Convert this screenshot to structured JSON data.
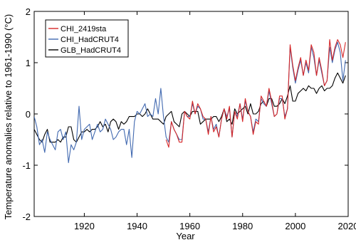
{
  "chart_data": {
    "type": "line",
    "xlabel": "Year",
    "ylabel": "Temperature anomalies relative to 1961-1990 (°C)",
    "xlim": [
      1901,
      2020
    ],
    "ylim": [
      -2,
      2
    ],
    "x_ticks": [
      1920,
      1940,
      1960,
      1980,
      2000,
      2020
    ],
    "x_tick_labels": [
      "1920",
      "1940",
      "1960",
      "1980",
      "2000",
      "2020"
    ],
    "y_ticks": [
      -2,
      -1,
      0,
      1,
      2
    ],
    "y_tick_labels": [
      "-2",
      "-1",
      "0",
      "1",
      "2"
    ],
    "grid": false,
    "legend_position": "top-left",
    "series": [
      {
        "name": "CHI_2419sta",
        "color": "#d62728",
        "x": [
          1951,
          1952,
          1953,
          1954,
          1955,
          1956,
          1957,
          1958,
          1959,
          1960,
          1961,
          1962,
          1963,
          1964,
          1965,
          1966,
          1967,
          1968,
          1969,
          1970,
          1971,
          1972,
          1973,
          1974,
          1975,
          1976,
          1977,
          1978,
          1979,
          1980,
          1981,
          1982,
          1983,
          1984,
          1985,
          1986,
          1987,
          1988,
          1989,
          1990,
          1991,
          1992,
          1993,
          1994,
          1995,
          1996,
          1997,
          1998,
          1999,
          2000,
          2001,
          2002,
          2003,
          2004,
          2005,
          2006,
          2007,
          2008,
          2009,
          2010,
          2011,
          2012,
          2013,
          2014,
          2015,
          2016,
          2017,
          2018,
          2019
        ],
        "values": [
          -0.5,
          -0.65,
          -0.15,
          -0.3,
          -0.4,
          -0.55,
          -0.55,
          0.05,
          -0.05,
          -0.1,
          0.25,
          0.0,
          0.2,
          0.1,
          -0.05,
          -0.1,
          -0.4,
          -0.05,
          -0.35,
          -0.25,
          -0.45,
          -0.1,
          0.1,
          -0.1,
          0.15,
          -0.45,
          0.05,
          -0.1,
          0.2,
          -0.15,
          0.3,
          0.05,
          -0.05,
          -0.4,
          -0.15,
          -0.2,
          0.35,
          0.25,
          0.15,
          0.5,
          0.25,
          -0.05,
          0.0,
          0.35,
          0.35,
          -0.1,
          0.1,
          1.35,
          0.95,
          0.65,
          0.9,
          1.1,
          0.75,
          1.05,
          0.85,
          1.35,
          1.2,
          0.75,
          1.1,
          0.85,
          0.55,
          0.65,
          1.45,
          1.05,
          1.3,
          1.45,
          1.35,
          1.1,
          1.4
        ]
      },
      {
        "name": "CHI_HadCRUT4",
        "color": "#4169b0",
        "x": [
          1901,
          1902,
          1903,
          1904,
          1905,
          1906,
          1907,
          1908,
          1909,
          1910,
          1911,
          1912,
          1913,
          1914,
          1915,
          1916,
          1917,
          1918,
          1919,
          1920,
          1921,
          1922,
          1923,
          1924,
          1925,
          1926,
          1927,
          1928,
          1929,
          1930,
          1931,
          1932,
          1933,
          1934,
          1935,
          1936,
          1937,
          1938,
          1939,
          1940,
          1941,
          1942,
          1943,
          1944,
          1945,
          1946,
          1947,
          1948,
          1949,
          1950,
          1951,
          1952,
          1953,
          1954,
          1955,
          1956,
          1957,
          1958,
          1959,
          1960,
          1961,
          1962,
          1963,
          1964,
          1965,
          1966,
          1967,
          1968,
          1969,
          1970,
          1971,
          1972,
          1973,
          1974,
          1975,
          1976,
          1977,
          1978,
          1979,
          1980,
          1981,
          1982,
          1983,
          1984,
          1985,
          1986,
          1987,
          1988,
          1989,
          1990,
          1991,
          1992,
          1993,
          1994,
          1995,
          1996,
          1997,
          1998,
          1999,
          2000,
          2001,
          2002,
          2003,
          2004,
          2005,
          2006,
          2007,
          2008,
          2009,
          2010,
          2011,
          2012,
          2013,
          2014,
          2015,
          2016,
          2017,
          2018,
          2019
        ],
        "values": [
          -0.05,
          -0.25,
          -0.6,
          -0.5,
          -0.75,
          -0.35,
          -0.5,
          -0.6,
          -0.7,
          -0.35,
          -0.3,
          -0.5,
          -0.35,
          -0.95,
          -0.6,
          -0.7,
          -0.55,
          0.15,
          -0.5,
          -0.3,
          -0.25,
          -0.2,
          -0.5,
          -0.35,
          -0.2,
          -0.35,
          -0.3,
          -0.1,
          -0.2,
          -0.3,
          -0.5,
          -0.45,
          -0.35,
          -0.3,
          -0.3,
          -0.6,
          -0.3,
          -0.85,
          -0.15,
          0.05,
          0.0,
          0.1,
          0.2,
          -0.05,
          0.0,
          -0.05,
          0.3,
          0.0,
          0.5,
          -0.05,
          -0.45,
          -0.55,
          -0.15,
          -0.3,
          -0.4,
          -0.5,
          -0.5,
          0.05,
          -0.05,
          -0.05,
          0.2,
          0.0,
          0.15,
          0.1,
          -0.1,
          -0.1,
          -0.35,
          -0.05,
          -0.3,
          -0.2,
          -0.45,
          -0.1,
          0.1,
          -0.05,
          0.1,
          -0.45,
          0.05,
          -0.05,
          0.2,
          -0.1,
          0.25,
          0.05,
          -0.05,
          -0.35,
          -0.1,
          -0.15,
          0.3,
          0.2,
          0.15,
          0.45,
          0.2,
          -0.05,
          0.0,
          0.3,
          0.3,
          -0.05,
          0.1,
          1.3,
          0.9,
          0.6,
          0.85,
          1.05,
          0.75,
          1.0,
          0.8,
          1.3,
          1.1,
          0.75,
          1.05,
          0.8,
          0.55,
          0.65,
          1.3,
          1.0,
          1.25,
          1.4,
          1.2,
          0.65,
          1.05
        ]
      },
      {
        "name": "GLB_HadCRUT4",
        "color": "#000000",
        "x": [
          1901,
          1902,
          1903,
          1904,
          1905,
          1906,
          1907,
          1908,
          1909,
          1910,
          1911,
          1912,
          1913,
          1914,
          1915,
          1916,
          1917,
          1918,
          1919,
          1920,
          1921,
          1922,
          1923,
          1924,
          1925,
          1926,
          1927,
          1928,
          1929,
          1930,
          1931,
          1932,
          1933,
          1934,
          1935,
          1936,
          1937,
          1938,
          1939,
          1940,
          1941,
          1942,
          1943,
          1944,
          1945,
          1946,
          1947,
          1948,
          1949,
          1950,
          1951,
          1952,
          1953,
          1954,
          1955,
          1956,
          1957,
          1958,
          1959,
          1960,
          1961,
          1962,
          1963,
          1964,
          1965,
          1966,
          1967,
          1968,
          1969,
          1970,
          1971,
          1972,
          1973,
          1974,
          1975,
          1976,
          1977,
          1978,
          1979,
          1980,
          1981,
          1982,
          1983,
          1984,
          1985,
          1986,
          1987,
          1988,
          1989,
          1990,
          1991,
          1992,
          1993,
          1994,
          1995,
          1996,
          1997,
          1998,
          1999,
          2000,
          2001,
          2002,
          2003,
          2004,
          2005,
          2006,
          2007,
          2008,
          2009,
          2010,
          2011,
          2012,
          2013,
          2014,
          2015,
          2016,
          2017,
          2018,
          2019
        ],
        "values": [
          -0.3,
          -0.4,
          -0.5,
          -0.55,
          -0.4,
          -0.3,
          -0.55,
          -0.55,
          -0.55,
          -0.5,
          -0.55,
          -0.45,
          -0.45,
          -0.25,
          -0.25,
          -0.5,
          -0.55,
          -0.45,
          -0.35,
          -0.35,
          -0.3,
          -0.35,
          -0.3,
          -0.3,
          -0.25,
          -0.15,
          -0.25,
          -0.2,
          -0.35,
          -0.15,
          -0.1,
          -0.15,
          -0.3,
          -0.15,
          -0.2,
          -0.15,
          -0.05,
          -0.05,
          -0.05,
          0.0,
          0.0,
          -0.05,
          0.0,
          0.1,
          0.0,
          -0.1,
          -0.1,
          -0.1,
          -0.15,
          -0.2,
          -0.05,
          0.0,
          0.05,
          -0.15,
          -0.2,
          -0.25,
          0.0,
          0.05,
          0.0,
          -0.05,
          0.05,
          0.05,
          0.05,
          -0.2,
          -0.15,
          -0.1,
          -0.1,
          -0.1,
          -0.05,
          -0.05,
          -0.15,
          -0.05,
          0.1,
          -0.15,
          -0.1,
          -0.2,
          0.1,
          0.0,
          0.05,
          0.1,
          0.15,
          0.0,
          0.2,
          0.0,
          0.0,
          0.05,
          0.2,
          0.25,
          0.15,
          0.3,
          0.3,
          0.15,
          0.15,
          0.2,
          0.3,
          0.2,
          0.35,
          0.55,
          0.25,
          0.25,
          0.4,
          0.45,
          0.5,
          0.45,
          0.55,
          0.5,
          0.5,
          0.4,
          0.5,
          0.55,
          0.45,
          0.5,
          0.5,
          0.55,
          0.7,
          0.8,
          0.7,
          0.6,
          0.75
        ]
      }
    ]
  }
}
